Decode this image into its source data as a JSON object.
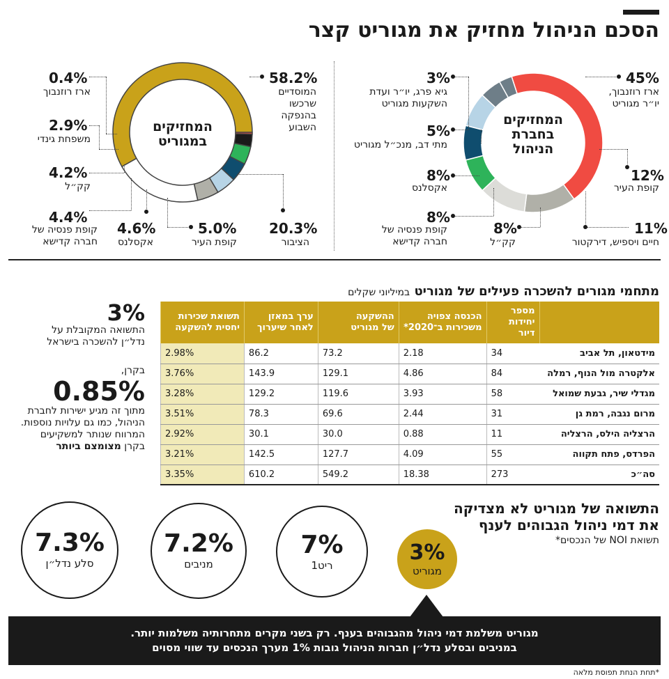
{
  "header": {
    "title": "הסכם הניהול מחזיק את מגוריט קצר"
  },
  "management_holders": {
    "center_label_1": "המחזיקים",
    "center_label_2": "בחברת",
    "center_label_3": "הניהול",
    "items": [
      {
        "pct": "45%",
        "label_1": "ארז רוזנבוך,",
        "label_2": "יו״ר מגוריט"
      },
      {
        "pct": "12%",
        "label_1": "קופת העיר",
        "label_2": ""
      },
      {
        "pct": "11%",
        "label_1": "חיים ויספיש, דירקטור",
        "label_2": ""
      },
      {
        "pct": "8%",
        "label_1": "קק״ל",
        "label_2": ""
      },
      {
        "pct": "8%",
        "label_1": "קופת פנסיה של",
        "label_2": "חברה קדישא"
      },
      {
        "pct": "8%",
        "label_1": "אקסלנס",
        "label_2": ""
      },
      {
        "pct": "5%",
        "label_1": "מתי דב, מנכ״ל מגוריט",
        "label_2": ""
      },
      {
        "pct": "3%",
        "label_1": "גיא פרג, יו״ר ועדת",
        "label_2": "השקעות מגוריט"
      }
    ]
  },
  "magurit_holders": {
    "center_label_1": "המחזיקים",
    "center_label_2": "במגוריט",
    "items": [
      {
        "pct": "58.2%",
        "label_1": "המוסדיים",
        "label_2": "שרכשו",
        "label_3": "בהנפקה",
        "label_4": "השבוע"
      },
      {
        "pct": "20.3%",
        "label_1": "הציבור"
      },
      {
        "pct": "5.0%",
        "label_1": "קופת העיר"
      },
      {
        "pct": "4.6%",
        "label_1": "אקסלנס"
      },
      {
        "pct": "4.4%",
        "label_1": "קופת פנסיה של",
        "label_2": "חברה קדישא"
      },
      {
        "pct": "4.2%",
        "label_1": "קק״ל"
      },
      {
        "pct": "2.9%",
        "label_1": "משפחת גינדי"
      },
      {
        "pct": "0.4%",
        "label_1": "ארז רוזנבוך"
      }
    ]
  },
  "projects": {
    "title": "מתחמי מגורים להשכרה פעילים של מגוריט",
    "title_unit": "במיליוני שקלים",
    "headers": {
      "units_1": "מספר",
      "units_2": "יחידות דיור",
      "income_1": "הכנסה צפויה",
      "income_2": "משכירות ב־2020*",
      "invest_1": "ההשקעה",
      "invest_2": "של מגוריט",
      "value_1": "ערך במאזן",
      "value_2": "לאחר שיערוך",
      "yield_1": "תשואת שכירות",
      "yield_2": "יחסית להשקעה"
    },
    "rows": [
      {
        "name": "מידטאון, תל אביב",
        "units": "34",
        "income": "2.18",
        "invest": "73.2",
        "value": "86.2",
        "yield": "2.98%"
      },
      {
        "name": "אלקטרה מול הנוף, רמלה",
        "units": "84",
        "income": "4.86",
        "invest": "129.1",
        "value": "143.9",
        "yield": "3.76%"
      },
      {
        "name": "מגדלי שיר, גבעת שמואל",
        "units": "58",
        "income": "3.93",
        "invest": "119.6",
        "value": "129.2",
        "yield": "3.28%"
      },
      {
        "name": "מרום נגבה, רמת גן",
        "units": "31",
        "income": "2.44",
        "invest": "69.6",
        "value": "78.3",
        "yield": "3.51%"
      },
      {
        "name": "הרצליה הילס, הרצליה",
        "units": "11",
        "income": "0.88",
        "invest": "30.0",
        "value": "30.1",
        "yield": "2.92%"
      },
      {
        "name": "הפרדס, פתח תקווה",
        "units": "55",
        "income": "4.09",
        "invest": "127.7",
        "value": "142.5",
        "yield": "3.21%"
      }
    ],
    "total": {
      "name": "סה״כ",
      "units": "273",
      "income": "18.38",
      "invest": "549.2",
      "value": "610.2",
      "yield": "3.35%"
    }
  },
  "side_note": {
    "big_1": "3%",
    "text_1a": "התשואה המקובלת על",
    "text_1b": "נדל״ן להשכרה בישראל",
    "pre_2": "בקרן,",
    "big_2": "0.85%",
    "text_2a": "מתוך זה מגיע ישירות לחברת",
    "text_2b": "הניהול, כמו גם עלויות נוספות.",
    "text_2c": "המרווח שנותר למשקיעים",
    "text_2d_prefix": "בקרן",
    "text_2d_bold": "מצומצם ביותר"
  },
  "comparison": {
    "title_1": "התשואה של מגוריט לא מצדיקה",
    "title_2": "את דמי ניהול הגבוהים לענף",
    "subtitle": "תשואת NOI של הנכסים*",
    "circles": [
      {
        "value": "3%",
        "label": "מגוריט"
      },
      {
        "value": "7%",
        "label": "ריט1"
      },
      {
        "value": "7.2%",
        "label": "מניבים"
      },
      {
        "value": "7.3%",
        "label": "סלע נדל״ן"
      }
    ]
  },
  "banner": {
    "line_1": "מגוריט משלמת דמי ניהול מהגבוהים בענף. רק בשני מקרים מתחרותיה משלמות יותר.",
    "line_2": "במניבים ובסלע נדל״ן חברות הניהול גובות 1% מערך הנכסים עד שווי מסוים"
  },
  "footnote": "*תחת הנחת תפוסת מלאה",
  "colors": {
    "gold": "#c9a21a",
    "red": "#f04b42",
    "gray": "#b0b0a8",
    "lightgray": "#dcdcd8",
    "green": "#2eb35a",
    "navy": "#0f4d6e",
    "lightblue": "#b7d4e6",
    "slate": "#6e7e88",
    "black": "#1a1a1a"
  },
  "chart_data": [
    {
      "type": "pie",
      "title": "המחזיקים בחברת הניהול",
      "categories": [
        "ארז רוזנבוך, יו״ר מגוריט",
        "קופת העיר",
        "חיים ויספיש, דירקטור",
        "קק״ל",
        "קופת פנסיה של חברה קדישא",
        "אקסלנס",
        "מתי דב, מנכ״ל מגוריט",
        "גיא פרג, יו״ר ועדת השקעות מגוריט"
      ],
      "values": [
        45,
        12,
        11,
        8,
        8,
        8,
        5,
        3
      ],
      "colors": [
        "#f04b42",
        "#b0b0a8",
        "#dcdcd8",
        "#2eb35a",
        "#0f4d6e",
        "#b7d4e6",
        "#6e7e88",
        "#6e7e88"
      ]
    },
    {
      "type": "pie",
      "title": "המחזיקים במגוריט",
      "categories": [
        "המוסדיים שרכשו בהנפקה השבוע",
        "הציבור",
        "קופת העיר",
        "אקסלנס",
        "קופת פנסיה של חברה קדישא",
        "קק״ל",
        "משפחת גינדי",
        "ארז רוזנבוך"
      ],
      "values": [
        58.2,
        20.3,
        5.0,
        4.6,
        4.4,
        4.2,
        2.9,
        0.4
      ],
      "colors": [
        "#c9a21a",
        "#ffffff",
        "#b0b0a8",
        "#b7d4e6",
        "#0f4d6e",
        "#2eb35a",
        "#1a1a1a",
        "#f04b42"
      ]
    },
    {
      "type": "table",
      "title": "מתחמי מגורים להשכרה פעילים של מגוריט",
      "columns": [
        "מספר יחידות דיור",
        "הכנסה צפויה משכירות ב־2020*",
        "ההשקעה של מגוריט",
        "ערך במאזן לאחר שיערוך",
        "תשואת שכירות יחסית להשקעה"
      ],
      "rows": [
        "מידטאון, תל אביב",
        "אלקטרה מול הנוף, רמלה",
        "מגדלי שיר, גבעת שמואל",
        "מרום נגבה, רמת גן",
        "הרצליה הילס, הרצליה",
        "הפרדס, פתח תקווה",
        "סה״כ"
      ],
      "values": [
        [
          34,
          2.18,
          73.2,
          86.2,
          2.98
        ],
        [
          84,
          4.86,
          129.1,
          143.9,
          3.76
        ],
        [
          58,
          3.93,
          119.6,
          129.2,
          3.28
        ],
        [
          31,
          2.44,
          69.6,
          78.3,
          3.51
        ],
        [
          11,
          0.88,
          30.0,
          30.1,
          2.92
        ],
        [
          55,
          4.09,
          127.7,
          142.5,
          3.21
        ],
        [
          273,
          18.38,
          549.2,
          610.2,
          3.35
        ]
      ]
    },
    {
      "type": "bar",
      "title": "התשואה של מגוריט לא מצדיקה את דמי ניהול הגבוהים לענף",
      "categories": [
        "מגוריט",
        "ריט1",
        "מניבים",
        "סלע נדל״ן"
      ],
      "values": [
        3,
        7,
        7.2,
        7.3
      ]
    }
  ]
}
